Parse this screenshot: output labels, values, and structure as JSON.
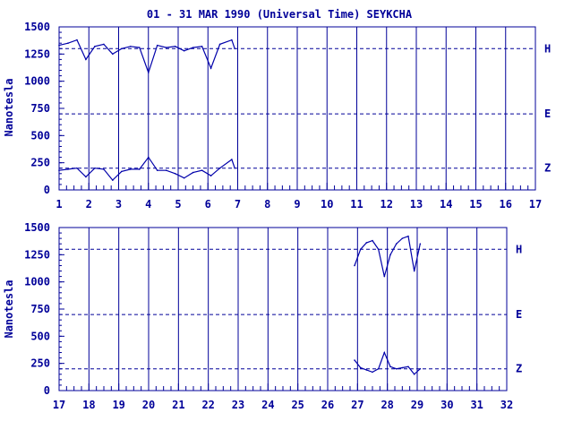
{
  "title": "01 - 31 MAR 1990 (Universal Time) SEYKCHA",
  "ylabel": "Nanotesla",
  "colors": {
    "axis": "#000099",
    "trace": "#0000aa"
  },
  "chart_data": [
    {
      "type": "line",
      "panel": "top",
      "x_range": [
        1,
        17
      ],
      "x_ticks": [
        "1",
        "2",
        "3",
        "4",
        "5",
        "6",
        "7",
        "8",
        "9",
        "10",
        "11",
        "12",
        "13",
        "14",
        "15",
        "16",
        "17"
      ],
      "ylim": [
        0,
        1500
      ],
      "y_ticks": [
        "0",
        "250",
        "500",
        "750",
        "1000",
        "1250",
        "1500"
      ],
      "reference_lines": [
        {
          "name": "H",
          "value": 1300
        },
        {
          "name": "E",
          "value": 700
        },
        {
          "name": "Z",
          "value": 200
        }
      ],
      "series": [
        {
          "name": "H",
          "x": [
            1.0,
            1.3,
            1.6,
            1.9,
            2.2,
            2.5,
            2.8,
            3.1,
            3.4,
            3.7,
            4.0,
            4.3,
            4.6,
            4.9,
            5.2,
            5.5,
            5.8,
            6.1,
            6.4,
            6.8,
            6.9
          ],
          "y": [
            1330,
            1350,
            1380,
            1200,
            1320,
            1340,
            1250,
            1300,
            1320,
            1310,
            1080,
            1330,
            1310,
            1320,
            1280,
            1310,
            1320,
            1120,
            1340,
            1380,
            1300
          ]
        },
        {
          "name": "Z",
          "x": [
            1.0,
            1.3,
            1.6,
            1.9,
            2.2,
            2.5,
            2.8,
            3.1,
            3.4,
            3.7,
            4.0,
            4.3,
            4.6,
            4.9,
            5.2,
            5.5,
            5.8,
            6.1,
            6.4,
            6.8,
            6.9
          ],
          "y": [
            180,
            190,
            200,
            120,
            200,
            190,
            90,
            170,
            190,
            190,
            300,
            180,
            180,
            150,
            110,
            160,
            180,
            130,
            200,
            280,
            200
          ]
        }
      ]
    },
    {
      "type": "line",
      "panel": "bottom",
      "x_range": [
        17,
        32
      ],
      "x_ticks": [
        "17",
        "18",
        "19",
        "20",
        "21",
        "22",
        "23",
        "24",
        "25",
        "26",
        "27",
        "28",
        "29",
        "30",
        "31",
        "32"
      ],
      "ylim": [
        0,
        1500
      ],
      "y_ticks": [
        "0",
        "250",
        "500",
        "750",
        "1000",
        "1250",
        "1500"
      ],
      "reference_lines": [
        {
          "name": "H",
          "value": 1300
        },
        {
          "name": "E",
          "value": 700
        },
        {
          "name": "Z",
          "value": 200
        }
      ],
      "series": [
        {
          "name": "H",
          "x": [
            26.9,
            27.1,
            27.3,
            27.5,
            27.7,
            27.9,
            28.1,
            28.3,
            28.5,
            28.7,
            28.9,
            29.1
          ],
          "y": [
            1150,
            1300,
            1360,
            1380,
            1300,
            1050,
            1250,
            1350,
            1400,
            1420,
            1100,
            1350
          ]
        },
        {
          "name": "Z",
          "x": [
            26.9,
            27.1,
            27.3,
            27.5,
            27.7,
            27.9,
            28.1,
            28.3,
            28.5,
            28.7,
            28.9,
            29.1
          ],
          "y": [
            280,
            210,
            190,
            170,
            200,
            350,
            220,
            200,
            210,
            220,
            150,
            200
          ]
        }
      ]
    }
  ]
}
